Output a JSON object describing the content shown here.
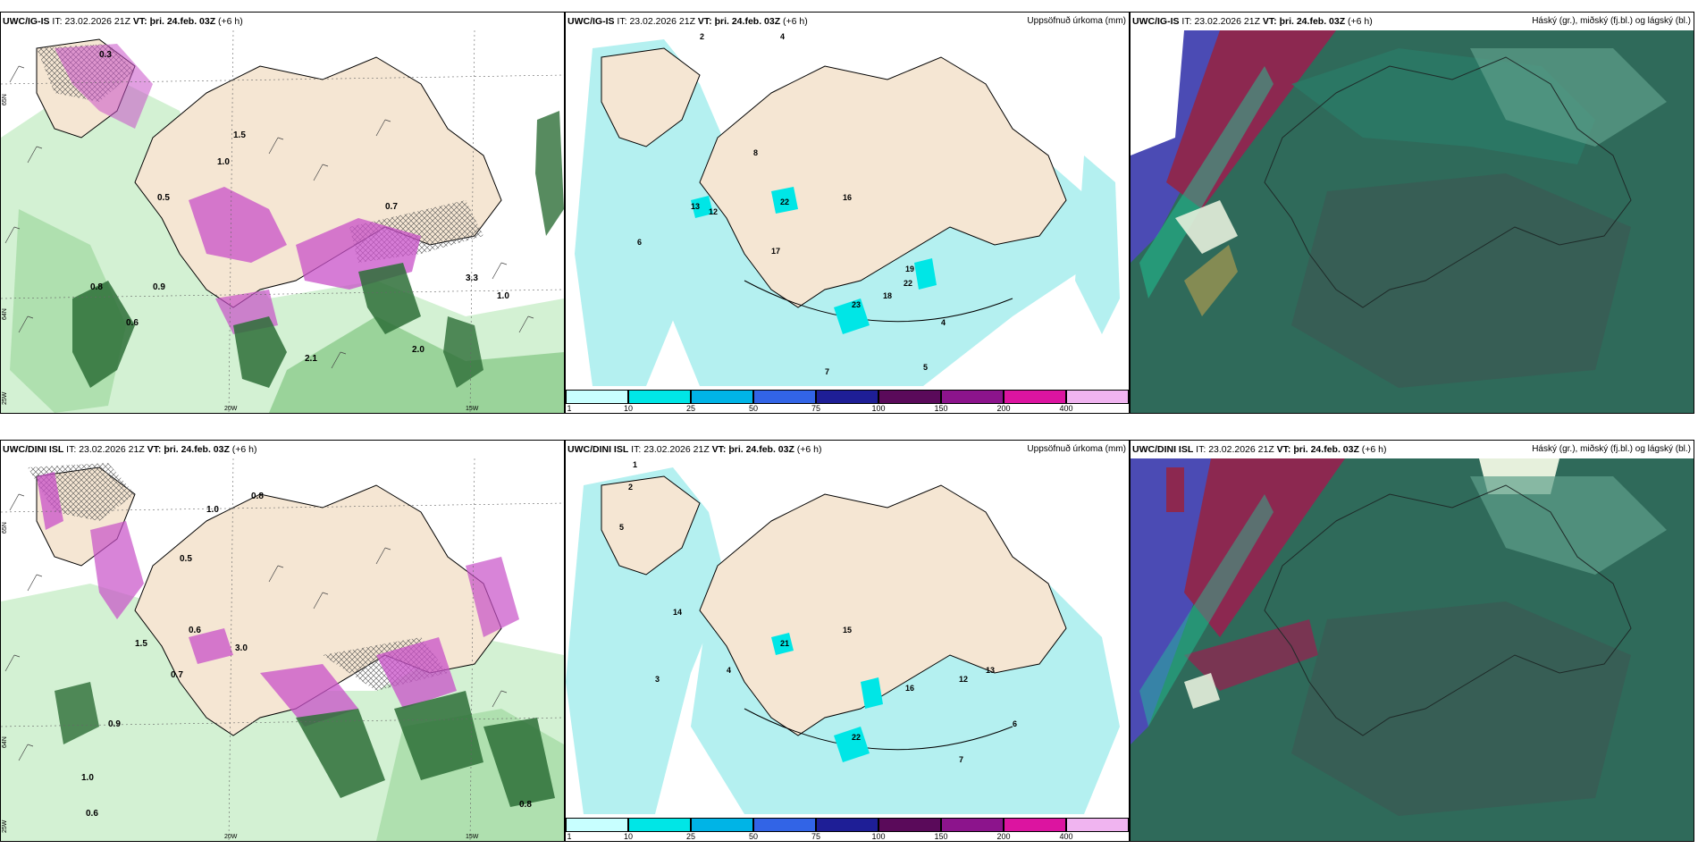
{
  "rows": [
    {
      "model": "UWC/IG-IS",
      "it_label": "IT:",
      "it_value": "23.02.2026 21Z",
      "vt_label": "VT:",
      "vt_value": "þri. 24.feb. 03Z",
      "lead": "(+6 h)"
    },
    {
      "model": "UWC/DINI ISL",
      "it_label": "IT:",
      "it_value": "23.02.2026 21Z",
      "vt_label": "VT:",
      "vt_value": "þri. 24.feb. 03Z",
      "lead": "(+6 h)"
    }
  ],
  "panel_titles": {
    "precip": "Uppsöfnuð úrkoma (mm)",
    "cloud": "Háský (gr.), miðský (fj.bl.) og lágský (bl.)"
  },
  "axis_labels": {
    "lat_top": "65N",
    "lat_mid": "64N",
    "lon_left": "25W",
    "lon_mid": "20W",
    "lon_right": "15W"
  },
  "colorbar": {
    "ticks": [
      "1",
      "10",
      "25",
      "50",
      "75",
      "100",
      "150",
      "200",
      "400"
    ],
    "colors": [
      "#c8ffff",
      "#00e6e6",
      "#00b4e6",
      "#3264e6",
      "#1e1e96",
      "#5a0a5a",
      "#8c148c",
      "#dc14a0",
      "#f0b4f0"
    ]
  },
  "colors": {
    "land": "#f5e6d3",
    "precip_light": "#b4f0f0",
    "snow_green_light": "#c8eec8",
    "snow_green_dark": "#2d6e37",
    "snow_pink": "#c850c8",
    "cloud_high": "#8c2850",
    "cloud_mid": "#1e7864",
    "cloud_low": "#4b4bb4"
  },
  "map_labels_top_left": [
    "0.3",
    "0.5",
    "1.0",
    "1.5",
    "2.1",
    "0.8",
    "0.6",
    "0.9",
    "3.3",
    "2.0",
    "1.0",
    "0.7"
  ],
  "map_labels_top_mid": [
    "2",
    "4",
    "6",
    "8",
    "13",
    "12",
    "22",
    "16",
    "17",
    "19",
    "22",
    "23",
    "18",
    "4",
    "5",
    "7"
  ],
  "map_labels_bottom_left": [
    "1.0",
    "0.8",
    "0.5",
    "0.6",
    "3.0",
    "1.5",
    "0.7",
    "0.9",
    "1.0",
    "0.6",
    "0.8"
  ],
  "map_labels_bottom_mid": [
    "1",
    "2",
    "3",
    "4",
    "5",
    "14",
    "21",
    "15",
    "16",
    "12",
    "22",
    "13",
    "6",
    "7"
  ]
}
